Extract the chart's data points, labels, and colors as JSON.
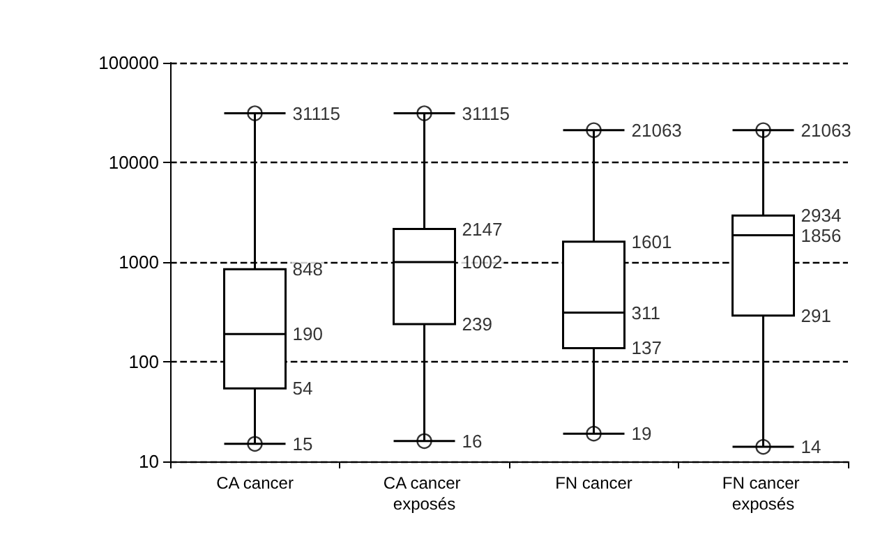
{
  "chart_data": {
    "type": "box",
    "categories": [
      "CA cancer",
      "CA cancer exposés",
      "FN cancer",
      "FN cancer exposés"
    ],
    "boxes": [
      {
        "low": 15,
        "q1": 54,
        "median": 190,
        "q3": 848,
        "high": 31115,
        "outliers": [
          15,
          31115
        ]
      },
      {
        "low": 16,
        "q1": 239,
        "median": 1002,
        "q3": 2147,
        "high": 31115,
        "outliers": [
          16,
          31115
        ]
      },
      {
        "low": 19,
        "q1": 137,
        "median": 311,
        "q3": 1601,
        "high": 21063,
        "outliers": [
          19,
          21063
        ]
      },
      {
        "low": 14,
        "q1": 291,
        "median": 1856,
        "q3": 2934,
        "high": 21063,
        "outliers": [
          14,
          21063
        ]
      }
    ],
    "annotations": [
      {
        "text": "31115",
        "x": "CA cancer",
        "y": 31115
      },
      {
        "text": "848",
        "x": "CA cancer",
        "y": 848
      },
      {
        "text": "190",
        "x": "CA cancer",
        "y": 190
      },
      {
        "text": "54",
        "x": "CA cancer",
        "y": 54
      },
      {
        "text": "15",
        "x": "CA cancer",
        "y": 15
      },
      {
        "text": "31115",
        "x": "CA cancer exposés",
        "y": 31115
      },
      {
        "text": "2147",
        "x": "CA cancer exposés",
        "y": 2147
      },
      {
        "text": "1002",
        "x": "CA cancer exposés",
        "y": 1002
      },
      {
        "text": "239",
        "x": "CA cancer exposés",
        "y": 239
      },
      {
        "text": "16",
        "x": "CA cancer exposés",
        "y": 16
      },
      {
        "text": "21063",
        "x": "FN cancer",
        "y": 21063
      },
      {
        "text": "1601",
        "x": "FN cancer",
        "y": 1601
      },
      {
        "text": "311",
        "x": "FN cancer",
        "y": 311
      },
      {
        "text": "137",
        "x": "FN cancer",
        "y": 137
      },
      {
        "text": "19",
        "x": "FN cancer",
        "y": 19
      },
      {
        "text": "21063",
        "x": "FN cancer exposés",
        "y": 21063
      },
      {
        "text": "2934",
        "x": "FN cancer exposés",
        "y": 2934
      },
      {
        "text": "1856",
        "x": "FN cancer exposés",
        "y": 1856
      },
      {
        "text": "291",
        "x": "FN cancer exposés",
        "y": 291
      },
      {
        "text": "14",
        "x": "FN cancer exposés",
        "y": 14
      }
    ],
    "color": "#000000",
    "ylim": [
      10,
      100000
    ],
    "yticks": [
      10,
      100,
      1000,
      10000,
      100000
    ],
    "log": true,
    "grid": "y",
    "marker": "circle"
  }
}
